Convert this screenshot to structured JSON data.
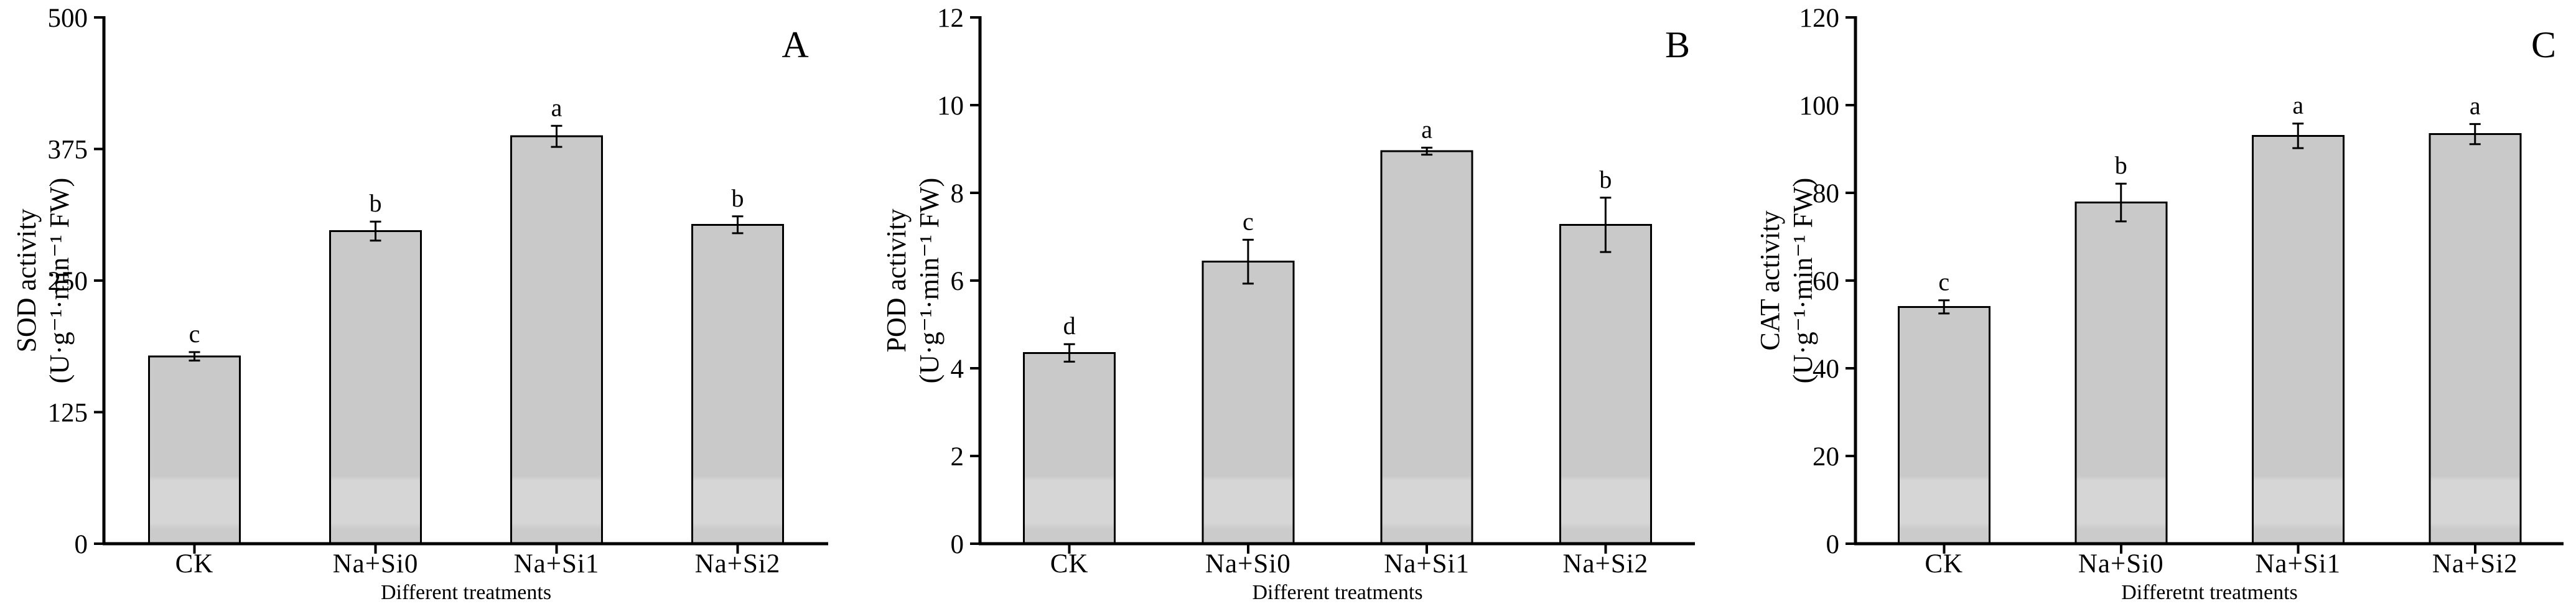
{
  "figure": {
    "background_color": "#ffffff",
    "text_color": "#000000",
    "axis_color": "#000000",
    "bar_fill_color": "#c9c9c9",
    "bar_fill_band_color": "#d6d6d6",
    "bar_border_color": "#000000"
  },
  "chart_data": [
    {
      "type": "bar",
      "panel_label": "A",
      "ylabel_line1": "SOD activity",
      "ylabel_line2": "(U·g⁻¹·min⁻¹ FW)",
      "xlabel": "Different treatments",
      "categories": [
        "CK",
        "Na+Si0",
        "Na+Si1",
        "Na+Si2"
      ],
      "values": [
        178,
        297,
        387,
        303
      ],
      "error_bars": [
        4,
        9,
        10,
        8
      ],
      "significance_letters": [
        "c",
        "b",
        "a",
        "b"
      ],
      "ylim": [
        0,
        500
      ],
      "yticks": [
        0,
        125,
        250,
        375,
        500
      ],
      "grid": false,
      "legend": null
    },
    {
      "type": "bar",
      "panel_label": "B",
      "ylabel_line1": "POD activity",
      "ylabel_line2": "(U·g⁻¹·min⁻¹ FW)",
      "xlabel": "Different treatments",
      "categories": [
        "CK",
        "Na+Si0",
        "Na+Si1",
        "Na+Si2"
      ],
      "values": [
        4.35,
        6.43,
        8.95,
        7.27
      ],
      "error_bars": [
        0.2,
        0.5,
        0.08,
        0.62
      ],
      "significance_letters": [
        "d",
        "c",
        "a",
        "b"
      ],
      "ylim": [
        0,
        12
      ],
      "yticks": [
        0,
        2,
        4,
        6,
        8,
        10,
        12
      ],
      "grid": false,
      "legend": null
    },
    {
      "type": "bar",
      "panel_label": "C",
      "ylabel_line1": "CAT activity",
      "ylabel_line2": "(U·g⁻¹·min⁻¹ FW)",
      "xlabel": "Differetnt treatments",
      "categories": [
        "CK",
        "Na+Si0",
        "Na+Si1",
        "Na+Si2"
      ],
      "values": [
        54,
        77.8,
        93,
        93.4
      ],
      "error_bars": [
        1.5,
        4.3,
        2.8,
        2.3
      ],
      "significance_letters": [
        "c",
        "b",
        "a",
        "a"
      ],
      "ylim": [
        0,
        120
      ],
      "yticks": [
        0,
        20,
        40,
        60,
        80,
        100,
        120
      ],
      "grid": false,
      "legend": null
    }
  ]
}
